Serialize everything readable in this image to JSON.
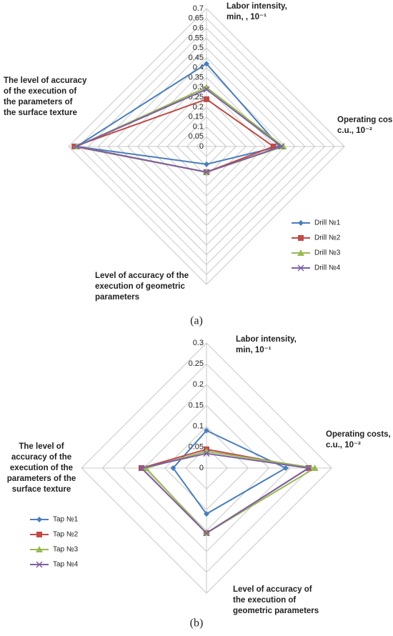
{
  "chart_data": [
    {
      "type": "radar",
      "caption": "(a)",
      "categories": [
        [
          "Labor intensity,",
          "min, , 10⁻¹"
        ],
        [
          "Operating cos",
          "c.u., 10⁻²"
        ],
        [
          "Level of accuracy of the",
          "execution of geometric",
          "parameters"
        ],
        [
          "The level of accuracy",
          "of the execution of",
          "the parameters of",
          "the surface texture"
        ]
      ],
      "ylim": [
        0,
        0.7
      ],
      "yticks": [
        0,
        0.05,
        0.1,
        0.15,
        0.2,
        0.25,
        0.3,
        0.35,
        0.4,
        0.45,
        0.5,
        0.55,
        0.6,
        0.65,
        0.7
      ],
      "grid": true,
      "legend": "lower right",
      "series": [
        {
          "name": "Drill №1",
          "color": "#4a7ebb",
          "marker": "diamond",
          "values": [
            0.42,
            0.37,
            0.09,
            0.66
          ]
        },
        {
          "name": "Drill №2",
          "color": "#be4b48",
          "marker": "square",
          "values": [
            0.24,
            0.34,
            0.13,
            0.67
          ]
        },
        {
          "name": "Drill №3",
          "color": "#98b954",
          "marker": "triangle",
          "values": [
            0.3,
            0.39,
            0.13,
            0.66
          ]
        },
        {
          "name": "Drill №4",
          "color": "#7d60a0",
          "marker": "x",
          "values": [
            0.29,
            0.38,
            0.13,
            0.66
          ]
        }
      ]
    },
    {
      "type": "radar",
      "caption": "(b)",
      "categories": [
        [
          "Labor intensity,",
          "min, 10⁻¹"
        ],
        [
          "Operating costs,",
          "c.u., 10⁻²"
        ],
        [
          "Level of accuracy of",
          "the execution of",
          "geometric parameters"
        ],
        [
          "The level of",
          "accuracy of the",
          "execution of the",
          "parameters of the",
          "surface texture"
        ]
      ],
      "ylim": [
        0,
        0.3
      ],
      "yticks": [
        0,
        0.05,
        0.1,
        0.15,
        0.2,
        0.25,
        0.3
      ],
      "grid": true,
      "legend": "lower left",
      "series": [
        {
          "name": "Tap №1",
          "color": "#4a7ebb",
          "marker": "diamond",
          "values": [
            0.09,
            0.19,
            0.11,
            0.08
          ]
        },
        {
          "name": "Tap №2",
          "color": "#be4b48",
          "marker": "square",
          "values": [
            0.045,
            0.245,
            0.156,
            0.156
          ]
        },
        {
          "name": "Tap №3",
          "color": "#98b954",
          "marker": "triangle",
          "values": [
            0.04,
            0.26,
            0.156,
            0.145
          ]
        },
        {
          "name": "Tap №4",
          "color": "#7d60a0",
          "marker": "x",
          "values": [
            0.035,
            0.245,
            0.156,
            0.156
          ]
        }
      ]
    }
  ]
}
